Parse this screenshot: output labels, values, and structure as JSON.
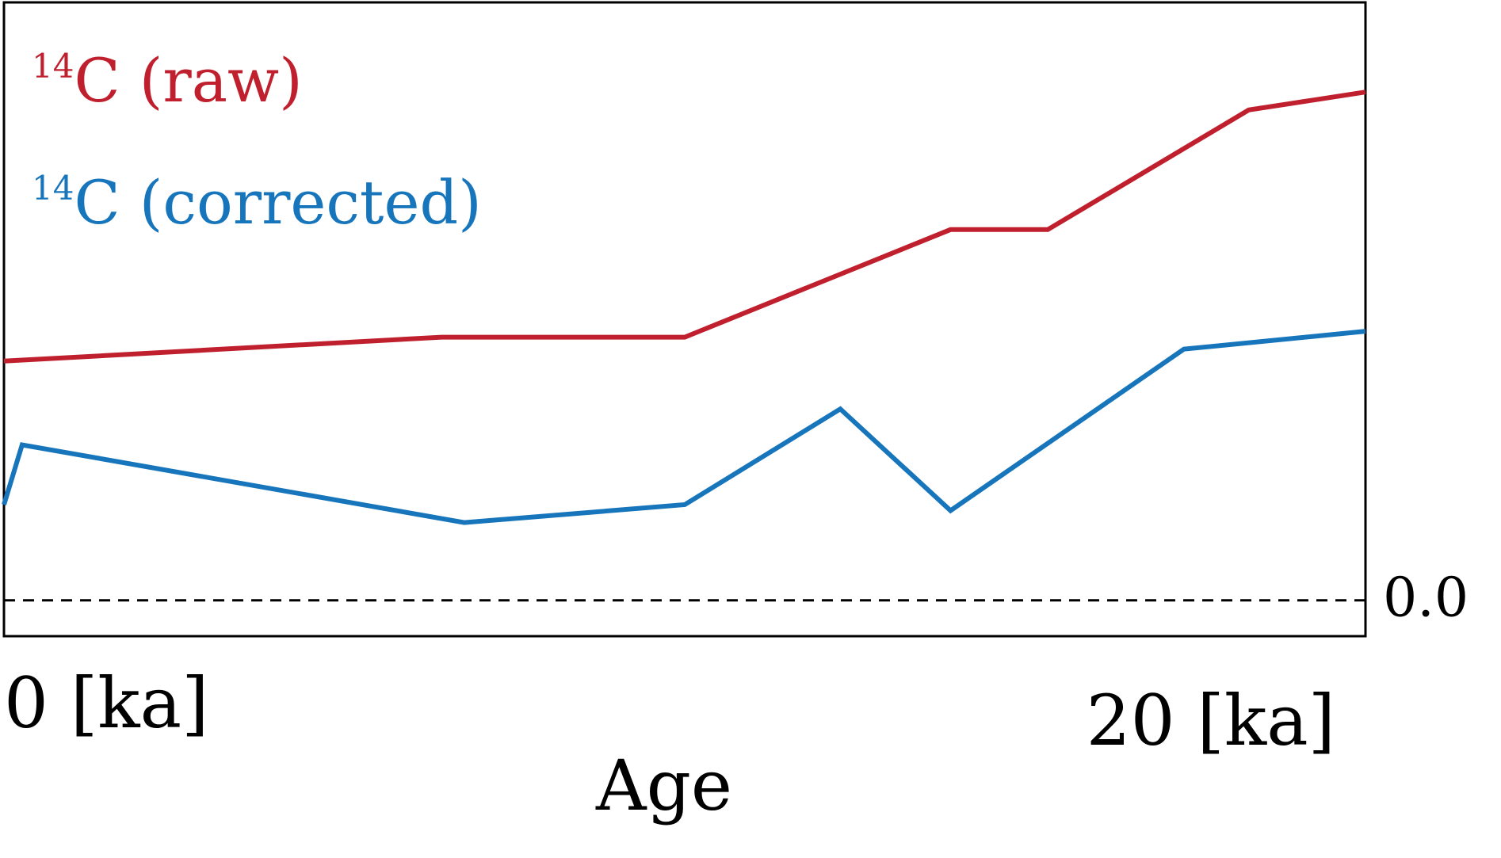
{
  "chart_data": {
    "type": "line",
    "title": "",
    "xlabel": "Age",
    "ylabel": "",
    "x_unit": "ka",
    "xlim": [
      0,
      21
    ],
    "ylim": [
      -0.06,
      1.0
    ],
    "x_tick_labels": [
      {
        "value": 0,
        "label": "0 [ka]"
      },
      {
        "value": 20,
        "label": "20 [ka]"
      }
    ],
    "reference_line": {
      "value": 0.0,
      "label": "0.0",
      "style": "dashed"
    },
    "legend_placement": "top-left",
    "grid": false,
    "series": [
      {
        "name": "raw",
        "label_superscript": "14",
        "label_main": "C (raw)",
        "color": "#c0202e",
        "x": [
          0,
          6.75,
          10.5,
          14.6,
          16.1,
          19.2,
          21.0
        ],
        "y": [
          0.4,
          0.44,
          0.44,
          0.62,
          0.62,
          0.82,
          0.85
        ]
      },
      {
        "name": "corrected",
        "label_superscript": "14",
        "label_main": "C (corrected)",
        "color": "#1775bb",
        "x": [
          0,
          0.28,
          7.1,
          10.5,
          12.9,
          14.6,
          18.2,
          21.0
        ],
        "y": [
          0.16,
          0.26,
          0.13,
          0.16,
          0.32,
          0.15,
          0.42,
          0.45
        ]
      }
    ]
  }
}
